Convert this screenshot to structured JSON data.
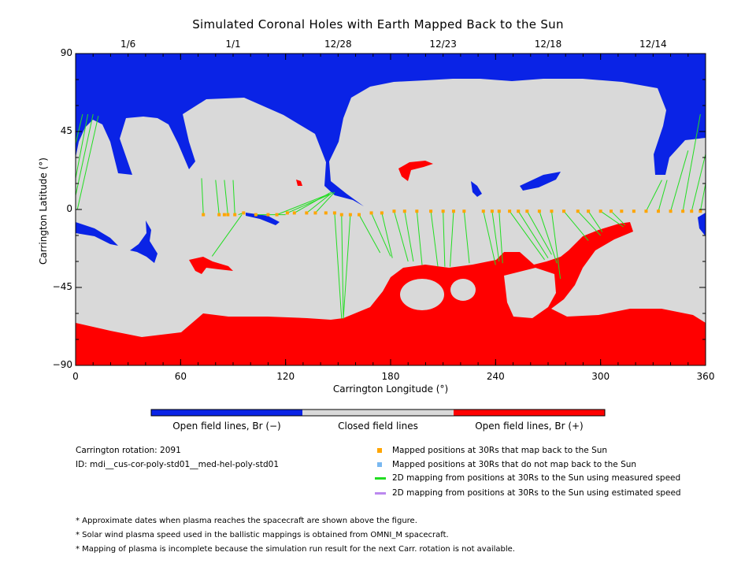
{
  "title": "Simulated Coronal Holes with Earth Mapped Back to the Sun",
  "chart_data": {
    "type": "map",
    "xlabel": "Carrington Longitude (°)",
    "ylabel": "Carrington Latitude (°)",
    "xlim": [
      0,
      360
    ],
    "ylim": [
      -90,
      90
    ],
    "x_ticks": [
      "0",
      "60",
      "120",
      "180",
      "240",
      "300",
      "360"
    ],
    "y_ticks": [
      "90",
      "45",
      "0",
      "−45",
      "−90"
    ],
    "top_dates": [
      "1/6",
      "1/1",
      "12/28",
      "12/23",
      "12/18",
      "12/14"
    ],
    "top_date_longitudes": [
      30,
      90,
      150,
      210,
      270,
      330
    ],
    "mapped_points": [
      [
        73,
        -3
      ],
      [
        82,
        -3
      ],
      [
        85,
        -3
      ],
      [
        87,
        -3
      ],
      [
        91,
        -3
      ],
      [
        96,
        -2
      ],
      [
        103,
        -3
      ],
      [
        110,
        -3
      ],
      [
        115,
        -3
      ],
      [
        121,
        -2
      ],
      [
        125,
        -2
      ],
      [
        132,
        -2
      ],
      [
        137,
        -2
      ],
      [
        143,
        -2
      ],
      [
        148,
        -2
      ],
      [
        152,
        -3
      ],
      [
        157,
        -3
      ],
      [
        162,
        -3
      ],
      [
        169,
        -2
      ],
      [
        175,
        -2
      ],
      [
        182,
        -1
      ],
      [
        188,
        -1
      ],
      [
        195,
        -1
      ],
      [
        203,
        -1
      ],
      [
        210,
        -1
      ],
      [
        216,
        -1
      ],
      [
        222,
        -1
      ],
      [
        233,
        -1
      ],
      [
        238,
        -1
      ],
      [
        242,
        -1
      ],
      [
        248,
        -1
      ],
      [
        253,
        -1
      ],
      [
        258,
        -1
      ],
      [
        265,
        -1
      ],
      [
        272,
        -1
      ],
      [
        279,
        -1
      ],
      [
        287,
        -1
      ],
      [
        293,
        -1
      ],
      [
        300,
        -1
      ],
      [
        306,
        -1
      ],
      [
        312,
        -1
      ],
      [
        319,
        -1
      ],
      [
        326,
        -1
      ],
      [
        333,
        -1
      ],
      [
        340,
        -1
      ],
      [
        347,
        -1
      ],
      [
        352,
        -1
      ],
      [
        357,
        -1
      ]
    ],
    "mapping_lines": [
      [
        [
          73,
          -3
        ],
        [
          72,
          18
        ]
      ],
      [
        [
          82,
          -3
        ],
        [
          80,
          17
        ]
      ],
      [
        [
          87,
          -3
        ],
        [
          85,
          17
        ]
      ],
      [
        [
          91,
          -3
        ],
        [
          90,
          17
        ]
      ],
      [
        [
          96,
          -2
        ],
        [
          93,
          -3
        ]
      ],
      [
        [
          103,
          -3
        ],
        [
          120,
          -3
        ]
      ],
      [
        [
          115,
          -3
        ],
        [
          145,
          9
        ]
      ],
      [
        [
          121,
          -2
        ],
        [
          146,
          9
        ]
      ],
      [
        [
          125,
          -2
        ],
        [
          146,
          10
        ]
      ],
      [
        [
          132,
          -2
        ],
        [
          147,
          10
        ]
      ],
      [
        [
          137,
          -2
        ],
        [
          148,
          10
        ]
      ],
      [
        [
          148,
          -2
        ],
        [
          152,
          -63
        ]
      ],
      [
        [
          152,
          -3
        ],
        [
          153,
          -63
        ]
      ],
      [
        [
          157,
          -3
        ],
        [
          153,
          -63
        ]
      ],
      [
        [
          162,
          -3
        ],
        [
          174,
          -25
        ]
      ],
      [
        [
          169,
          -2
        ],
        [
          180,
          -27
        ]
      ],
      [
        [
          175,
          -2
        ],
        [
          181,
          -28
        ]
      ],
      [
        [
          182,
          -1
        ],
        [
          190,
          -30
        ]
      ],
      [
        [
          188,
          -1
        ],
        [
          193,
          -30
        ]
      ],
      [
        [
          195,
          -1
        ],
        [
          198,
          -32
        ]
      ],
      [
        [
          203,
          -1
        ],
        [
          207,
          -33
        ]
      ],
      [
        [
          210,
          -1
        ],
        [
          211,
          -33
        ]
      ],
      [
        [
          216,
          -1
        ],
        [
          214,
          -33
        ]
      ],
      [
        [
          222,
          -1
        ],
        [
          225,
          -31
        ]
      ],
      [
        [
          233,
          -1
        ],
        [
          240,
          -32
        ]
      ],
      [
        [
          238,
          -1
        ],
        [
          242,
          -30
        ]
      ],
      [
        [
          242,
          -1
        ],
        [
          244,
          -31
        ]
      ],
      [
        [
          248,
          -1
        ],
        [
          268,
          -29
        ]
      ],
      [
        [
          253,
          -1
        ],
        [
          270,
          -28
        ]
      ],
      [
        [
          258,
          -1
        ],
        [
          272,
          -26
        ]
      ],
      [
        [
          265,
          -1
        ],
        [
          275,
          -31
        ]
      ],
      [
        [
          272,
          -1
        ],
        [
          277,
          -40
        ]
      ],
      [
        [
          279,
          -1
        ],
        [
          293,
          -18
        ]
      ],
      [
        [
          287,
          -1
        ],
        [
          300,
          -15
        ]
      ],
      [
        [
          293,
          -1
        ],
        [
          301,
          -13
        ]
      ],
      [
        [
          300,
          -1
        ],
        [
          313,
          -10
        ]
      ],
      [
        [
          306,
          -1
        ],
        [
          314,
          -9
        ]
      ],
      [
        [
          95,
          -3
        ],
        [
          78,
          -27
        ]
      ],
      [
        [
          326,
          -1
        ],
        [
          335,
          17
        ]
      ],
      [
        [
          333,
          -1
        ],
        [
          338,
          17
        ]
      ],
      [
        [
          340,
          -1
        ],
        [
          350,
          34
        ]
      ],
      [
        [
          347,
          -1
        ],
        [
          357,
          55
        ]
      ],
      [
        [
          352,
          -1
        ],
        [
          360,
          32
        ]
      ],
      [
        [
          357,
          -1
        ],
        [
          360,
          15
        ]
      ],
      [
        [
          4,
          55
        ],
        [
          0,
          38
        ]
      ],
      [
        [
          7,
          55
        ],
        [
          0,
          18
        ]
      ],
      [
        [
          10,
          55
        ],
        [
          0,
          8
        ]
      ],
      [
        [
          13,
          54
        ],
        [
          1,
          0
        ]
      ]
    ],
    "regions": {
      "negative_open": "#0a23e6",
      "closed": "#d9d9d9",
      "positive_open": "#ff0000"
    }
  },
  "colorbar": {
    "labels": [
      "Open field lines, Br (−)",
      "Closed field lines",
      "Open field lines, Br (+)"
    ],
    "colors": [
      "#0a23e6",
      "#d9d9d9",
      "#ff0000"
    ]
  },
  "info": {
    "rotation": "Carrington rotation: 2091",
    "id": "ID: mdi__cus-cor-poly-std01__med-hel-poly-std01"
  },
  "legend": [
    {
      "label": "Mapped positions at 30Rs that map back to the Sun",
      "color": "#ffa500",
      "kind": "square"
    },
    {
      "label": "Mapped positions at 30Rs that do not map back to the Sun",
      "color": "#7ab8f0",
      "kind": "square"
    },
    {
      "label": "2D mapping from positions at 30Rs to the Sun using measured speed",
      "color": "#22dd22",
      "kind": "line"
    },
    {
      "label": "2D mapping from positions at 30Rs to the Sun using estimated speed",
      "color": "#bb88ee",
      "kind": "line"
    }
  ],
  "notes": [
    "* Approximate dates when plasma reaches the spacecraft are shown above the figure.",
    "* Solar wind plasma speed used in the ballistic mappings is obtained from OMNI_M spacecraft.",
    "* Mapping of plasma is incomplete because the simulation run result for the next Carr. rotation is not available."
  ]
}
